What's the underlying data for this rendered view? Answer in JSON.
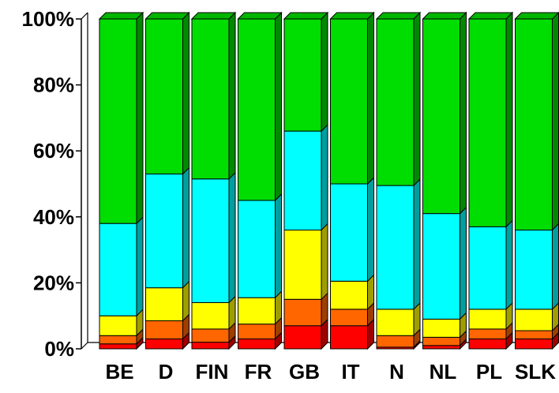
{
  "chart_data": {
    "type": "bar",
    "stacked": true,
    "percent": true,
    "three_d": true,
    "categories": [
      "BE",
      "D",
      "FIN",
      "FR",
      "GB",
      "IT",
      "N",
      "NL",
      "PL",
      "SLK"
    ],
    "series": [
      {
        "values": [
          1.5,
          3,
          2,
          3,
          7,
          7,
          0.5,
          1,
          3,
          3
        ],
        "color": "#ff0000"
      },
      {
        "values": [
          2.5,
          5.5,
          4,
          4.5,
          8,
          5,
          3.5,
          2.5,
          3,
          2.5
        ],
        "color": "#ff6600"
      },
      {
        "values": [
          6,
          10,
          8,
          8,
          21,
          8.5,
          8,
          5.5,
          6,
          6.5
        ],
        "color": "#ffff00"
      },
      {
        "values": [
          28,
          34.5,
          37.5,
          29.5,
          30,
          29.5,
          37.5,
          32,
          25,
          24
        ],
        "color": "#00ffff"
      },
      {
        "values": [
          62,
          47,
          48.5,
          55,
          34,
          50,
          50.5,
          59,
          63,
          64
        ],
        "color": "#00dd00"
      }
    ],
    "yticks": [
      "0%",
      "20%",
      "40%",
      "60%",
      "80%",
      "100%"
    ],
    "ylim": [
      0,
      100
    ],
    "grid": false,
    "legend": "none"
  }
}
